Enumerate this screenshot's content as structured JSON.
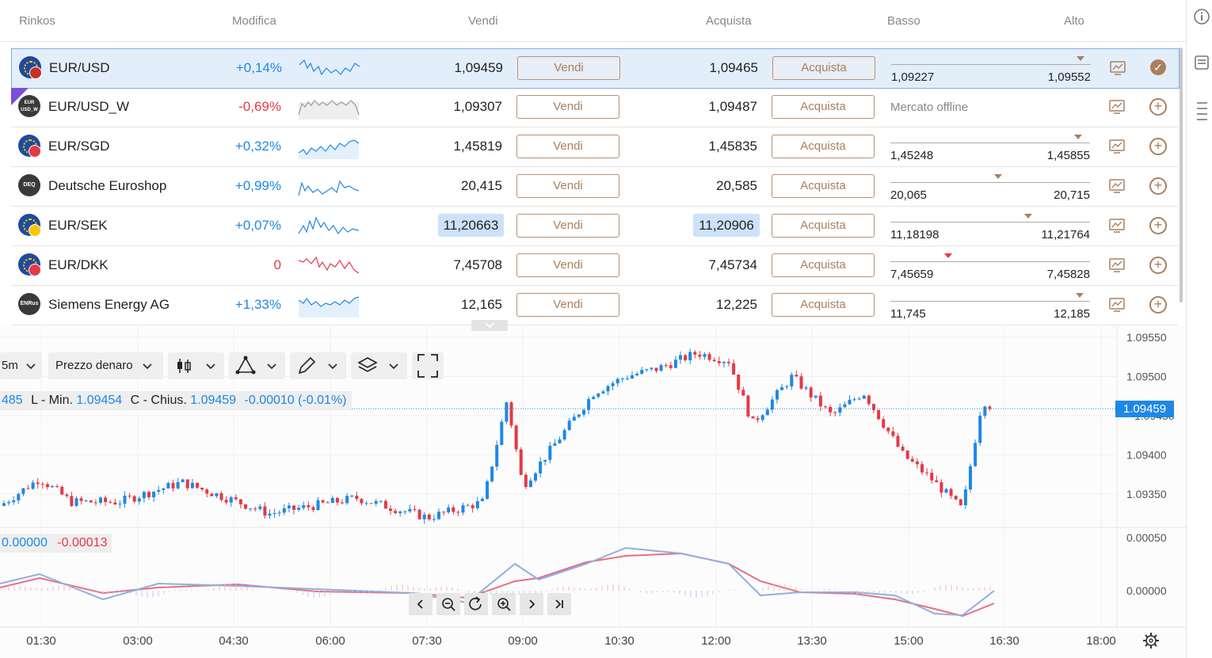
{
  "header": {
    "col_name": "Rinkos",
    "col_change": "Modifica",
    "col_sell": "Vendi",
    "col_buy": "Acquista",
    "col_low": "Basso",
    "col_high": "Alto"
  },
  "rows": [
    {
      "name": "EUR/USD",
      "change": "+0,14%",
      "sell": "1,09459",
      "sell_btn": "Vendi",
      "buy": "1,09465",
      "buy_btn": "Acquista",
      "low": "1,09227",
      "high": "1,09552",
      "range_pos": 0.95
    },
    {
      "name": "EUR/USD_W",
      "change": "-0,69%",
      "sell": "1,09307",
      "sell_btn": "Vendi",
      "buy": "1,09487",
      "buy_btn": "Acquista",
      "status": "Mercato offline",
      "icon_text": "EUR USD_W"
    },
    {
      "name": "EUR/SGD",
      "change": "+0,32%",
      "sell": "1,45819",
      "sell_btn": "Vendi",
      "buy": "1,45835",
      "buy_btn": "Acquista",
      "low": "1,45248",
      "high": "1,45855",
      "range_pos": 0.94
    },
    {
      "name": "Deutsche Euroshop",
      "change": "+0,99%",
      "sell": "20,415",
      "sell_btn": "Vendi",
      "buy": "20,585",
      "buy_btn": "Acquista",
      "low": "20,065",
      "high": "20,715",
      "range_pos": 0.54,
      "icon_text": "DEQ"
    },
    {
      "name": "EUR/SEK",
      "change": "+0,07%",
      "sell": "11,20663",
      "sell_btn": "Vendi",
      "buy": "11,20906",
      "buy_btn": "Acquista",
      "low": "11,18198",
      "high": "11,21764",
      "range_pos": 0.69
    },
    {
      "name": "EUR/DKK",
      "change": "0",
      "sell": "7,45708",
      "sell_btn": "Vendi",
      "buy": "7,45734",
      "buy_btn": "Acquista",
      "low": "7,45659",
      "high": "7,45828",
      "range_pos": 0.29
    },
    {
      "name": "Siemens Energy AG",
      "change": "+1,33%",
      "sell": "12,165",
      "sell_btn": "Vendi",
      "buy": "12,225",
      "buy_btn": "Acquista",
      "low": "11,745",
      "high": "12,185",
      "range_pos": 0.95,
      "icon_text": "ENRus"
    }
  ],
  "colors": {
    "positive": "#1e88e5",
    "negative": "#e53946",
    "accent": "#a9805e",
    "highlight": "#cde2f8"
  },
  "toolbar": {
    "interval": "5m",
    "price_type": "Prezzo denaro"
  },
  "ohlc": {
    "prefix": "485",
    "low_label": "L - Min.",
    "low_value": "1.09454",
    "close_label": "C - Chius.",
    "close_value": "1.09459",
    "change": "-0.00010 (-0.01%)"
  },
  "macd": {
    "v1": "0.00000",
    "v2": "-0.00013"
  },
  "chart_data": {
    "type": "candlestick",
    "price_axis": [
      "1.09550",
      "1.09500",
      "1.09400",
      "1.09350"
    ],
    "price_axis_covered": "1.09450",
    "last_price": "1.09459",
    "macd_axis": [
      "0.00050",
      "0.00000"
    ],
    "time_axis": [
      "01:30",
      "03:00",
      "04:30",
      "06:00",
      "07:30",
      "09:00",
      "10:30",
      "12:00",
      "13:30",
      "15:00",
      "16:30",
      "18:00"
    ],
    "ylim": [
      1.0932,
      1.0956
    ]
  }
}
